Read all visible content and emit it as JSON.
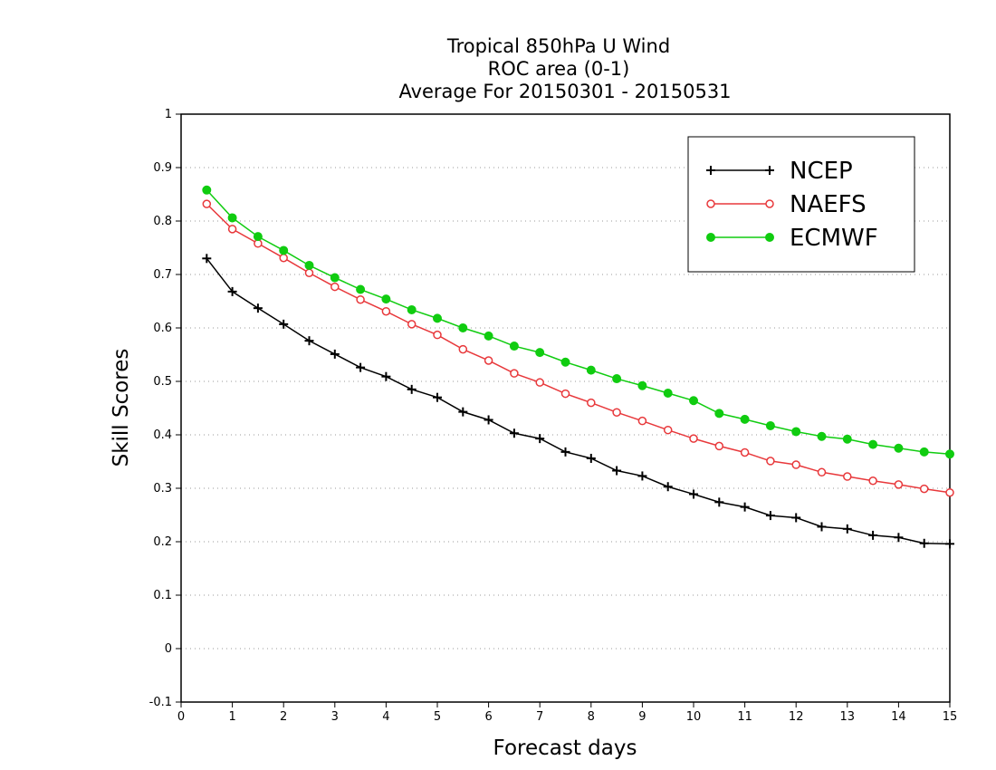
{
  "chart_data": {
    "type": "line",
    "title": [
      "Tropical 850hPa U Wind",
      "ROC area (0-1)",
      "Average For 20150301 - 20150531"
    ],
    "xlabel": "Forecast days",
    "ylabel": "Skill Scores",
    "xlim": [
      0,
      15
    ],
    "ylim": [
      -0.1,
      1
    ],
    "xticks": [
      "0",
      "1",
      "2",
      "3",
      "4",
      "5",
      "6",
      "7",
      "8",
      "9",
      "10",
      "11",
      "12",
      "13",
      "14",
      "15"
    ],
    "yticks": [
      "-0.1",
      "0",
      "0.1",
      "0.2",
      "0.3",
      "0.4",
      "0.5",
      "0.6",
      "0.7",
      "0.8",
      "0.9",
      "1"
    ],
    "grid": true,
    "legend_position": "top-right",
    "x": [
      0.5,
      1,
      1.5,
      2,
      2.5,
      3,
      3.5,
      4,
      4.5,
      5,
      5.5,
      6,
      6.5,
      7,
      7.5,
      8,
      8.5,
      9,
      9.5,
      10,
      10.5,
      11,
      11.5,
      12,
      12.5,
      13,
      13.5,
      14,
      14.5,
      15
    ],
    "series": [
      {
        "name": "NCEP",
        "color": "#000000",
        "marker": "plus",
        "values": [
          0.73,
          0.668,
          0.637,
          0.607,
          0.576,
          0.551,
          0.526,
          0.509,
          0.485,
          0.47,
          0.443,
          0.428,
          0.403,
          0.393,
          0.368,
          0.356,
          0.333,
          0.323,
          0.303,
          0.289,
          0.274,
          0.265,
          0.249,
          0.245,
          0.228,
          0.224,
          0.212,
          0.208,
          0.197,
          0.196
        ]
      },
      {
        "name": "NAEFS",
        "color": "#e8383b",
        "marker": "open-circle",
        "values": [
          0.832,
          0.785,
          0.758,
          0.731,
          0.703,
          0.677,
          0.653,
          0.631,
          0.607,
          0.587,
          0.56,
          0.539,
          0.515,
          0.498,
          0.477,
          0.46,
          0.442,
          0.426,
          0.409,
          0.393,
          0.379,
          0.367,
          0.351,
          0.344,
          0.33,
          0.322,
          0.314,
          0.307,
          0.299,
          0.292
        ]
      },
      {
        "name": "ECMWF",
        "color": "#10cc10",
        "marker": "filled-circle",
        "values": [
          0.858,
          0.806,
          0.771,
          0.745,
          0.717,
          0.694,
          0.672,
          0.654,
          0.634,
          0.618,
          0.6,
          0.585,
          0.566,
          0.554,
          0.536,
          0.521,
          0.505,
          0.492,
          0.478,
          0.464,
          0.44,
          0.429,
          0.417,
          0.406,
          0.397,
          0.392,
          0.382,
          0.375,
          0.368,
          0.364
        ]
      }
    ]
  }
}
